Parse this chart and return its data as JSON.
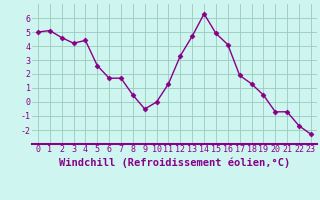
{
  "hours": [
    0,
    1,
    2,
    3,
    4,
    5,
    6,
    7,
    8,
    9,
    10,
    11,
    12,
    13,
    14,
    15,
    16,
    17,
    18,
    19,
    20,
    21,
    22,
    23
  ],
  "values": [
    5.0,
    5.1,
    4.6,
    4.2,
    4.4,
    2.6,
    1.7,
    1.7,
    0.5,
    -0.5,
    0.0,
    1.3,
    3.3,
    4.7,
    6.3,
    4.9,
    4.1,
    1.9,
    1.3,
    0.5,
    -0.7,
    -0.7,
    -1.7,
    -2.3
  ],
  "line_color": "#880088",
  "marker": "D",
  "marker_size": 2.5,
  "bg_color": "#cef5f0",
  "plot_bg_color": "#cef5f0",
  "grid_color": "#99ccbb",
  "axis_color": "#880088",
  "xlabel": "Windchill (Refroidissement éolien,°C)",
  "xlabel_color": "#880088",
  "ylim": [
    -3,
    7
  ],
  "xlim": [
    -0.5,
    23.5
  ],
  "yticks": [
    -2,
    -1,
    0,
    1,
    2,
    3,
    4,
    5,
    6
  ],
  "xticks": [
    0,
    1,
    2,
    3,
    4,
    5,
    6,
    7,
    8,
    9,
    10,
    11,
    12,
    13,
    14,
    15,
    16,
    17,
    18,
    19,
    20,
    21,
    22,
    23
  ],
  "tick_label_color": "#880088",
  "tick_label_fontsize": 6.0,
  "xlabel_fontsize": 7.5,
  "line_width": 1.0
}
